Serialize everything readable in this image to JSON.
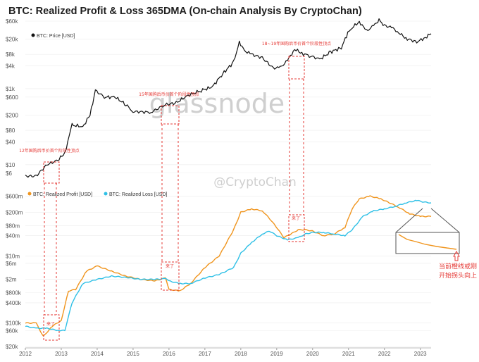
{
  "title": "BTC: Realized Profit & Loss 365DMA (On-chain Analysis By CryptoChan)",
  "watermark": "glassnode",
  "social_watermark": "@CryptoChan",
  "colors": {
    "price": "#111111",
    "profit": "#f0951e",
    "loss": "#2fc0e6",
    "annotation": "#e53935",
    "grid": "#ececec"
  },
  "x_axis": {
    "ticks": [
      "2012",
      "2013",
      "2014",
      "2015",
      "2016",
      "2017",
      "2018",
      "2019",
      "2020",
      "2021",
      "2022",
      "2023"
    ],
    "range": [
      2012,
      2023.3
    ]
  },
  "annotations": {
    "box_2012": "12年国购后币价首个阶段性顶点",
    "box_2016": "15年国购后币价首个阶段性顶点",
    "box_2019": "18~19年国购后币价首个阶段性顶点",
    "small_label": "来了",
    "callout_line1": "当前橙线或刚",
    "callout_line2": "开始拐头向上"
  },
  "chart_data": [
    {
      "type": "line",
      "yscale": "log",
      "ylim": [
        3,
        60000
      ],
      "y_ticks": [
        "$60k",
        "$20k",
        "$8k",
        "$4k",
        "$1k",
        "$600",
        "$200",
        "$80",
        "$40",
        "$10",
        "$6"
      ],
      "legend": "top-left",
      "series": [
        {
          "name": "BTC: Price [USD]",
          "x": [
            2012.0,
            2012.3,
            2012.6,
            2012.9,
            2013.1,
            2013.3,
            2013.6,
            2013.8,
            2013.95,
            2014.2,
            2014.5,
            2014.8,
            2015.0,
            2015.5,
            2015.9,
            2016.2,
            2016.5,
            2016.9,
            2017.2,
            2017.5,
            2017.8,
            2017.96,
            2018.1,
            2018.3,
            2018.6,
            2018.9,
            2019.1,
            2019.3,
            2019.5,
            2019.7,
            2019.95,
            2020.2,
            2020.5,
            2020.8,
            2020.98,
            2021.1,
            2021.3,
            2021.5,
            2021.7,
            2021.85,
            2022.0,
            2022.2,
            2022.4,
            2022.6,
            2022.9,
            2023.1,
            2023.3
          ],
          "values": [
            5,
            5,
            10,
            13,
            20,
            110,
            100,
            200,
            900,
            600,
            600,
            380,
            250,
            240,
            380,
            420,
            650,
            900,
            1100,
            2500,
            5000,
            17000,
            10000,
            8000,
            6500,
            3500,
            3600,
            5500,
            11000,
            8500,
            7200,
            6000,
            9200,
            12000,
            29000,
            40000,
            58000,
            33000,
            45000,
            64000,
            46000,
            41000,
            30000,
            21000,
            17000,
            21000,
            28000
          ]
        }
      ]
    },
    {
      "type": "line",
      "yscale": "log",
      "ylim": [
        20000,
        1000000000
      ],
      "y_ticks": [
        "$600m",
        "$200m",
        "$80m",
        "$40m",
        "$10m",
        "$6m",
        "$2m",
        "$800k",
        "$400k",
        "$100k",
        "$60k",
        "$20k"
      ],
      "legend": "top-left",
      "series": [
        {
          "name": "BTC: Realized Profit [USD]",
          "x": [
            2012.0,
            2012.3,
            2012.5,
            2012.75,
            2013.0,
            2013.2,
            2013.4,
            2013.7,
            2014.0,
            2014.4,
            2014.8,
            2015.2,
            2015.6,
            2015.9,
            2016.0,
            2016.3,
            2016.6,
            2017.0,
            2017.4,
            2017.8,
            2018.0,
            2018.3,
            2018.6,
            2018.8,
            2019.0,
            2019.2,
            2019.4,
            2019.6,
            2019.8,
            2020.0,
            2020.3,
            2020.6,
            2020.9,
            2021.1,
            2021.3,
            2021.6,
            2021.9,
            2022.1,
            2022.4,
            2022.7,
            2023.0,
            2023.3
          ],
          "values": [
            100000,
            100000,
            40000,
            80000,
            120000,
            900000,
            1000000,
            3500000,
            5000000,
            3500000,
            2500000,
            2000000,
            1800000,
            2200000,
            1000000,
            900000,
            1500000,
            4500000,
            10000000,
            60000000,
            200000000,
            250000000,
            220000000,
            130000000,
            70000000,
            35000000,
            45000000,
            60000000,
            60000000,
            55000000,
            40000000,
            45000000,
            70000000,
            250000000,
            500000000,
            600000000,
            500000000,
            400000000,
            280000000,
            180000000,
            150000000,
            150000000
          ]
        },
        {
          "name": "BTC: Realized Loss [USD]",
          "x": [
            2012.0,
            2012.3,
            2012.6,
            2012.9,
            2013.1,
            2013.3,
            2013.6,
            2014.0,
            2014.4,
            2014.8,
            2015.2,
            2015.6,
            2015.9,
            2016.0,
            2016.3,
            2016.6,
            2017.0,
            2017.4,
            2017.8,
            2018.0,
            2018.3,
            2018.6,
            2018.8,
            2019.0,
            2019.3,
            2019.6,
            2019.8,
            2020.0,
            2020.3,
            2020.6,
            2020.9,
            2021.1,
            2021.4,
            2021.7,
            2022.0,
            2022.3,
            2022.6,
            2022.9,
            2023.1,
            2023.3
          ],
          "values": [
            80000,
            70000,
            70000,
            60000,
            60000,
            400000,
            1500000,
            2000000,
            2500000,
            2300000,
            2000000,
            2000000,
            2100000,
            1800000,
            1500000,
            1500000,
            2200000,
            2800000,
            4500000,
            12000000,
            25000000,
            45000000,
            55000000,
            40000000,
            30000000,
            35000000,
            45000000,
            50000000,
            50000000,
            45000000,
            40000000,
            60000000,
            150000000,
            220000000,
            250000000,
            300000000,
            380000000,
            450000000,
            400000000,
            380000000
          ]
        }
      ]
    }
  ]
}
